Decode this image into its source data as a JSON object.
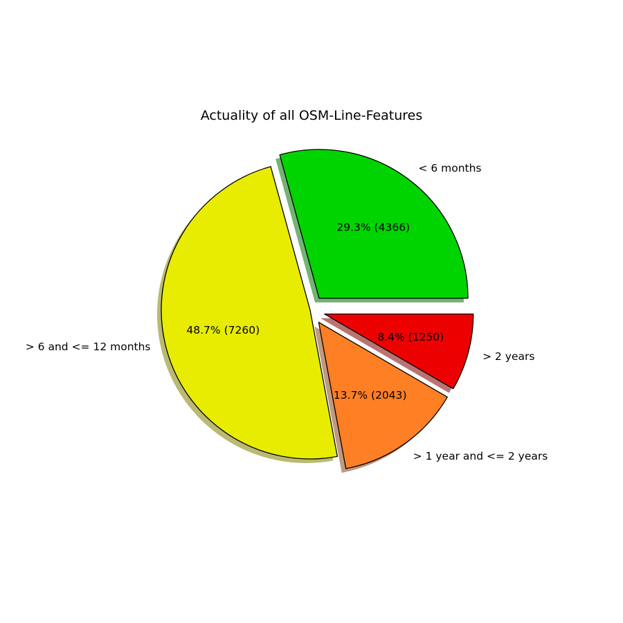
{
  "chart_data": {
    "type": "pie",
    "title": "Actuality of all OSM-Line-Features",
    "slices": [
      {
        "label": "< 6 months",
        "value": 4366,
        "percent_label": "29.3%  (4366)",
        "color": "#00d400",
        "exploded": true
      },
      {
        "label": "> 6 and <= 12 months",
        "value": 7260,
        "percent_label": "48.7%  (7260)",
        "color": "#e8ec00",
        "exploded": false
      },
      {
        "label": "> 1 year and <= 2 years",
        "value": 2043,
        "percent_label": "13.7%  (2043)",
        "color": "#ff7f24",
        "exploded": true
      },
      {
        "label": "> 2 years",
        "value": 1250,
        "percent_label": "8.4%  (1250)",
        "color": "#ec0000",
        "exploded": true
      }
    ],
    "start_angle_deg": 0,
    "direction": "counterclockwise",
    "shadow": true,
    "edge_color": "#000000"
  }
}
